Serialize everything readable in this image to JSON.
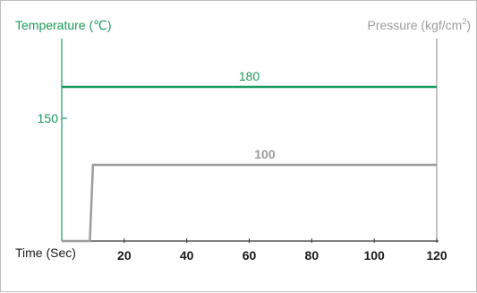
{
  "chart_data": {
    "type": "line",
    "title": "",
    "xlabel": "Time (Sec)",
    "ylabel_left": "Temperature (℃)",
    "ylabel_right_prefix": "Pressure (kgf/cm",
    "ylabel_right_sup": "2",
    "ylabel_right_suffix": ")",
    "xlim": [
      0,
      120
    ],
    "x_ticks": [
      20,
      40,
      60,
      80,
      100,
      120
    ],
    "left_y_ticks": [
      150
    ],
    "grid": false,
    "colors": {
      "temperature": "#1a9a5c",
      "pressure": "#9b9b9b",
      "axis_text": "#1a1a1a"
    },
    "series": [
      {
        "axis": "left",
        "color": "#1a9a5c",
        "label": "180",
        "points": [
          [
            0,
            180
          ],
          [
            120,
            180
          ]
        ]
      },
      {
        "axis": "right",
        "color": "#9b9b9b",
        "label": "100",
        "points": [
          [
            0,
            0
          ],
          [
            9,
            0
          ],
          [
            10,
            100
          ],
          [
            120,
            100
          ]
        ]
      }
    ]
  }
}
